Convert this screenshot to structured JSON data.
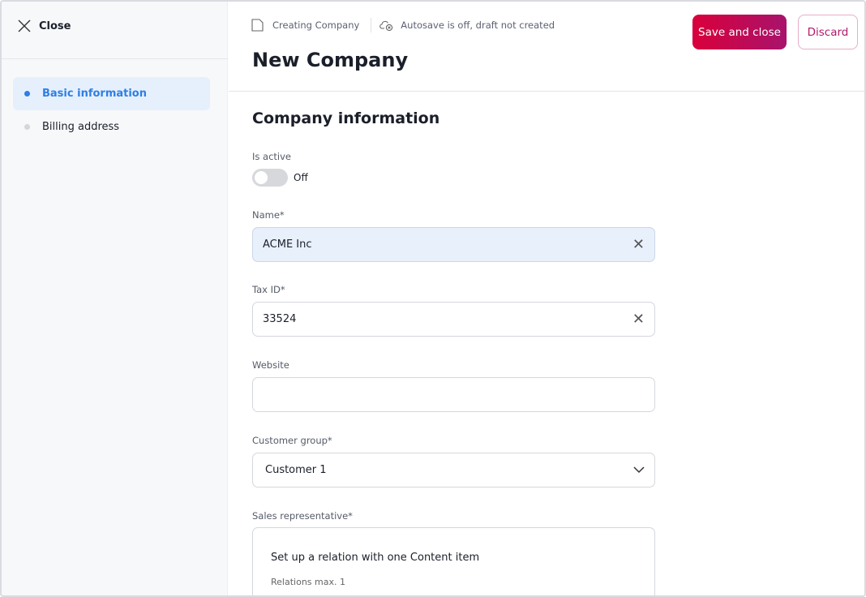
{
  "sidebar": {
    "close_label": "Close",
    "items": [
      {
        "label": "Basic information",
        "active": true
      },
      {
        "label": "Billing address",
        "active": false
      }
    ]
  },
  "header": {
    "breadcrumb": "Creating Company",
    "autosave_status": "Autosave is off, draft not created",
    "title": "New Company",
    "save_label": "Save and close",
    "discard_label": "Discard"
  },
  "colors": {
    "accent": "#2d7fe6",
    "primary_start": "#d9003b",
    "primary_end": "#a8136c"
  },
  "form": {
    "section_title": "Company information",
    "is_active": {
      "label": "Is active",
      "state": "Off"
    },
    "name": {
      "label": "Name*",
      "value": "ACME Inc"
    },
    "tax_id": {
      "label": "Tax ID*",
      "value": "33524"
    },
    "website": {
      "label": "Website",
      "value": ""
    },
    "customer_group": {
      "label": "Customer group*",
      "value": "Customer 1"
    },
    "sales_rep": {
      "label": "Sales representative*",
      "prompt": "Set up a relation with one Content item",
      "hint": "Relations max. 1"
    }
  }
}
